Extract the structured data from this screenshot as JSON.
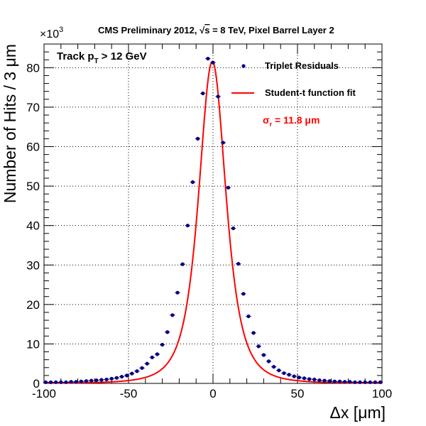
{
  "chart_data": {
    "type": "scatter",
    "title_pre": "CMS Preliminary 2012, ",
    "title_sqrt": "s",
    "title_post": " = 8 TeV, Pixel Barrel Layer 2",
    "cut_main": "Track p",
    "cut_sub": "T",
    "cut_post": " > 12 GeV",
    "xlabel": "Δx [μm]",
    "ylabel": "Number of Hits / 3 μm",
    "y_multiplier": "×10",
    "y_multiplier_exp": "3",
    "xlim": [
      -100,
      100
    ],
    "ylim": [
      0,
      86
    ],
    "x_tick_labels": [
      "-100",
      "-50",
      "0",
      "50",
      "100"
    ],
    "x_ticks": [
      -100,
      -50,
      0,
      50,
      100
    ],
    "y_tick_labels": [
      "0",
      "10",
      "20",
      "30",
      "40",
      "50",
      "60",
      "70",
      "80"
    ],
    "y_ticks": [
      0,
      10,
      20,
      30,
      40,
      50,
      60,
      70,
      80
    ],
    "grid": true,
    "legend_position": "top-right",
    "sigma_symbol": "σ",
    "sigma_sub": "r",
    "sigma_value": " = 11.8 μm",
    "series": [
      {
        "name": "Triplet Residuals",
        "kind": "points",
        "color": "#00008b",
        "x": [
          -99,
          -96,
          -93,
          -90,
          -87,
          -84,
          -81,
          -78,
          -75,
          -72,
          -69,
          -66,
          -63,
          -60,
          -57,
          -54,
          -51,
          -48,
          -45,
          -42,
          -39,
          -36,
          -33,
          -30,
          -27,
          -24,
          -21,
          -18,
          -15,
          -12,
          -9,
          -6,
          -3,
          0,
          3,
          6,
          9,
          12,
          15,
          18,
          21,
          24,
          27,
          30,
          33,
          36,
          39,
          42,
          45,
          48,
          51,
          54,
          57,
          60,
          63,
          66,
          69,
          72,
          75,
          78,
          81,
          84,
          87,
          90,
          93,
          96,
          99
        ],
        "y": [
          0.3,
          0.3,
          0.3,
          0.3,
          0.3,
          0.4,
          0.4,
          0.5,
          0.6,
          0.7,
          0.8,
          0.9,
          1.0,
          1.2,
          1.4,
          1.7,
          2.0,
          2.5,
          3.1,
          3.9,
          5.0,
          6.6,
          7.4,
          9.8,
          13.0,
          17.3,
          23.0,
          30.2,
          40.0,
          51.0,
          62.0,
          73.5,
          82.3,
          81.3,
          72.7,
          61.0,
          49.6,
          39.3,
          30.3,
          22.7,
          17.0,
          12.8,
          9.4,
          7.2,
          5.6,
          4.2,
          3.3,
          2.6,
          2.2,
          1.8,
          1.5,
          1.3,
          1.1,
          1.0,
          0.8,
          0.7,
          0.6,
          0.5,
          0.5,
          0.4,
          0.4,
          0.3,
          0.3,
          0.3,
          0.3,
          0.3,
          0.3
        ]
      },
      {
        "name": "Student-t function fit",
        "kind": "line",
        "color": "#ff0000",
        "model": {
          "amplitude": 81.6,
          "mean": -0.4,
          "scale": 8.6,
          "nu": 2.6
        }
      }
    ]
  }
}
